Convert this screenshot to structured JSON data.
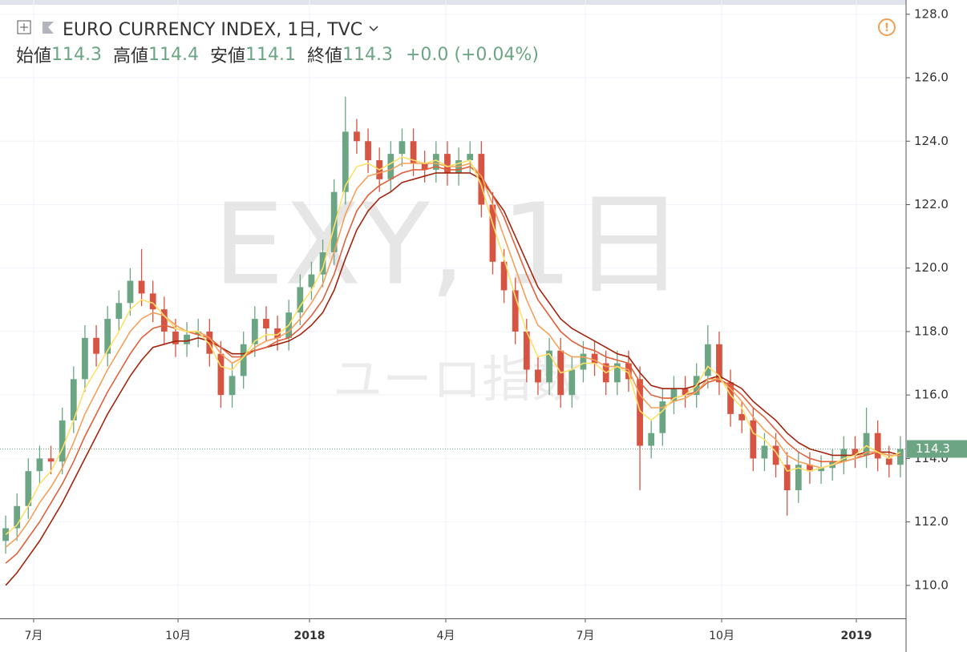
{
  "chart_data": {
    "type": "candlestick",
    "header": {
      "symbol": "EURO CURRENCY INDEX, 1日, TVC",
      "ohlc": [
        {
          "label": "始値",
          "value": 114.3
        },
        {
          "label": "高値",
          "value": 114.4
        },
        {
          "label": "安値",
          "value": 114.1
        },
        {
          "label": "終値",
          "value": 114.3
        }
      ],
      "change": "+0.0 (+0.04%)"
    },
    "watermark": "EXY, 1日",
    "watermark_subtitle": "ユーロ指数",
    "up_color": "#6ba583",
    "down_color": "#d75442",
    "open": [
      111.4,
      111.8,
      112.5,
      113.6,
      114.0,
      113.9,
      115.2,
      116.5,
      117.8,
      117.3,
      118.4,
      118.9,
      119.6,
      119.2,
      118.7,
      118.0,
      117.6,
      117.9,
      118.0,
      117.3,
      116.0,
      116.6,
      117.6,
      118.4,
      118.1,
      117.8,
      118.6,
      119.4,
      119.8,
      120.5,
      122.4,
      124.3,
      124.0,
      123.4,
      122.8,
      123.6,
      124.0,
      123.3,
      123.1,
      123.6,
      123.0,
      123.4,
      123.6,
      122.0,
      120.2,
      119.3,
      118.0,
      116.8,
      116.4,
      117.4,
      116.0,
      116.8,
      117.3,
      117.0,
      116.4,
      117.0,
      116.5,
      114.4,
      114.8,
      115.8,
      116.2,
      116.0,
      116.6,
      117.6,
      116.4,
      115.4,
      115.2,
      114.0,
      114.4,
      113.8,
      113.0,
      113.8,
      113.6,
      113.7,
      113.9,
      114.3,
      114.1,
      114.8,
      114.0,
      113.8
    ],
    "high": [
      112.2,
      112.9,
      114.0,
      114.4,
      114.4,
      115.6,
      116.9,
      118.2,
      118.2,
      118.8,
      119.3,
      120.0,
      120.6,
      119.6,
      119.1,
      118.4,
      118.3,
      118.4,
      118.4,
      117.7,
      117.0,
      118.0,
      118.8,
      118.8,
      118.5,
      119.0,
      119.8,
      120.2,
      120.9,
      122.8,
      125.4,
      124.7,
      124.4,
      123.8,
      124.0,
      124.4,
      124.4,
      123.7,
      124.0,
      124.0,
      123.8,
      124.0,
      124.0,
      122.4,
      120.6,
      119.7,
      118.4,
      117.2,
      117.8,
      117.8,
      117.2,
      117.7,
      117.7,
      117.4,
      117.4,
      117.4,
      116.9,
      115.2,
      116.2,
      116.6,
      116.6,
      117.0,
      118.2,
      118.0,
      116.8,
      115.8,
      115.6,
      114.8,
      114.8,
      114.2,
      114.2,
      114.2,
      114.1,
      114.3,
      114.7,
      114.7,
      115.6,
      115.2,
      114.4,
      114.7
    ],
    "low": [
      111.0,
      111.4,
      112.1,
      113.2,
      113.5,
      113.5,
      114.8,
      116.1,
      116.9,
      116.9,
      118.0,
      118.5,
      118.8,
      118.3,
      117.6,
      117.2,
      117.2,
      117.5,
      116.9,
      115.6,
      115.6,
      116.2,
      117.2,
      117.7,
      117.4,
      117.4,
      118.2,
      119.0,
      119.4,
      120.1,
      122.0,
      123.6,
      123.0,
      122.4,
      122.4,
      123.2,
      122.9,
      122.7,
      122.7,
      122.6,
      122.6,
      123.0,
      121.6,
      119.8,
      118.9,
      117.6,
      116.4,
      116.0,
      116.0,
      115.6,
      115.6,
      116.4,
      116.6,
      116.0,
      116.0,
      116.1,
      113.0,
      114.0,
      114.4,
      115.4,
      115.6,
      115.6,
      116.2,
      116.0,
      115.0,
      114.8,
      113.6,
      113.6,
      113.4,
      112.2,
      112.6,
      113.2,
      113.2,
      113.3,
      113.5,
      113.7,
      113.7,
      113.6,
      113.4,
      113.4
    ],
    "close": [
      111.8,
      112.5,
      113.6,
      114.0,
      113.9,
      115.2,
      116.5,
      117.8,
      117.3,
      118.4,
      118.9,
      119.6,
      119.2,
      118.7,
      118.0,
      117.6,
      117.9,
      118.0,
      117.3,
      116.0,
      116.6,
      117.6,
      118.4,
      118.1,
      117.8,
      118.6,
      119.4,
      119.8,
      120.5,
      122.4,
      124.3,
      124.0,
      123.4,
      122.8,
      123.6,
      124.0,
      123.3,
      123.1,
      123.6,
      123.0,
      123.4,
      123.6,
      122.0,
      120.2,
      119.3,
      118.0,
      116.8,
      116.4,
      117.4,
      116.0,
      116.8,
      117.3,
      117.0,
      116.4,
      117.0,
      116.5,
      114.4,
      114.8,
      115.8,
      116.2,
      116.0,
      116.6,
      117.6,
      116.4,
      115.4,
      115.2,
      114.0,
      114.4,
      113.8,
      113.0,
      113.8,
      113.6,
      113.7,
      113.9,
      114.3,
      114.1,
      114.8,
      114.0,
      113.8,
      114.3
    ],
    "series": [
      {
        "color": "#a3240c",
        "values": [
          110.0,
          110.4,
          110.9,
          111.4,
          112.0,
          112.6,
          113.3,
          114.0,
          114.7,
          115.4,
          116.0,
          116.6,
          117.1,
          117.5,
          117.6,
          117.7,
          117.7,
          117.8,
          117.7,
          117.5,
          117.3,
          117.3,
          117.4,
          117.5,
          117.6,
          117.7,
          117.9,
          118.2,
          118.6,
          119.3,
          120.3,
          121.2,
          121.8,
          122.2,
          122.4,
          122.7,
          122.8,
          122.9,
          123.0,
          123.0,
          123.0,
          123.0,
          122.8,
          122.3,
          121.8,
          121.0,
          120.2,
          119.4,
          118.9,
          118.4,
          118.1,
          117.9,
          117.7,
          117.5,
          117.3,
          117.2,
          116.7,
          116.3,
          116.2,
          116.2,
          116.2,
          116.3,
          116.5,
          116.6,
          116.4,
          116.2,
          115.8,
          115.5,
          115.2,
          114.8,
          114.5,
          114.3,
          114.2,
          114.1,
          114.1,
          114.1,
          114.2,
          114.2,
          114.2,
          114.1
        ]
      },
      {
        "color": "#e0603a",
        "values": [
          110.7,
          111.0,
          111.5,
          112.0,
          112.6,
          113.2,
          113.9,
          114.7,
          115.4,
          116.1,
          116.7,
          117.3,
          117.8,
          118.1,
          118.2,
          118.1,
          118.0,
          117.9,
          117.8,
          117.5,
          117.2,
          117.2,
          117.4,
          117.5,
          117.7,
          117.8,
          118.1,
          118.5,
          119.0,
          119.8,
          120.9,
          121.8,
          122.3,
          122.6,
          122.8,
          123.0,
          123.1,
          123.1,
          123.2,
          123.1,
          123.1,
          123.2,
          122.9,
          122.3,
          121.6,
          120.7,
          119.8,
          119.0,
          118.5,
          118.0,
          117.7,
          117.5,
          117.4,
          117.2,
          117.1,
          117.0,
          116.4,
          116.0,
          115.9,
          115.9,
          116.0,
          116.1,
          116.4,
          116.5,
          116.3,
          116.0,
          115.6,
          115.3,
          114.9,
          114.5,
          114.2,
          114.0,
          113.9,
          113.9,
          113.9,
          114.0,
          114.1,
          114.2,
          114.1,
          114.1
        ]
      },
      {
        "color": "#f5a05a",
        "values": [
          111.2,
          111.5,
          112.0,
          112.6,
          113.1,
          113.7,
          114.5,
          115.4,
          116.1,
          116.8,
          117.4,
          118.0,
          118.4,
          118.6,
          118.5,
          118.2,
          118.0,
          118.0,
          117.8,
          117.3,
          117.0,
          117.2,
          117.5,
          117.7,
          117.8,
          118.0,
          118.4,
          118.9,
          119.5,
          120.5,
          121.7,
          122.5,
          122.9,
          123.0,
          123.1,
          123.3,
          123.3,
          123.3,
          123.3,
          123.2,
          123.2,
          123.3,
          122.9,
          122.0,
          121.0,
          120.0,
          119.0,
          118.2,
          117.9,
          117.4,
          117.2,
          117.2,
          117.1,
          116.9,
          116.9,
          116.8,
          116.0,
          115.6,
          115.6,
          115.8,
          115.9,
          116.1,
          116.5,
          116.5,
          116.2,
          115.8,
          115.3,
          114.9,
          114.6,
          114.1,
          113.9,
          113.8,
          113.7,
          113.8,
          113.9,
          114.0,
          114.2,
          114.2,
          114.1,
          114.1
        ]
      },
      {
        "color": "#ffe066",
        "values": [
          111.6,
          111.9,
          112.5,
          113.2,
          113.6,
          114.3,
          115.2,
          116.2,
          116.8,
          117.4,
          118.0,
          118.7,
          119.0,
          118.9,
          118.5,
          118.1,
          118.0,
          118.0,
          117.6,
          116.9,
          116.8,
          117.2,
          117.7,
          117.9,
          117.9,
          118.2,
          118.8,
          119.3,
          120.0,
          121.3,
          122.6,
          123.2,
          123.3,
          123.1,
          123.3,
          123.5,
          123.4,
          123.3,
          123.4,
          123.2,
          123.3,
          123.4,
          122.6,
          121.4,
          120.3,
          119.1,
          118.0,
          117.2,
          117.3,
          116.7,
          116.8,
          117.0,
          117.0,
          116.7,
          116.9,
          116.7,
          115.5,
          115.2,
          115.5,
          115.9,
          116.0,
          116.3,
          116.9,
          116.6,
          116.0,
          115.6,
          114.8,
          114.6,
          114.2,
          113.6,
          113.7,
          113.6,
          113.7,
          113.8,
          114.0,
          114.1,
          114.4,
          114.2,
          114.0,
          114.2
        ]
      }
    ],
    "last_price": 114.3,
    "xlim": [
      0,
      80
    ],
    "xticks": [
      {
        "value": 2.97,
        "label": "7月"
      },
      {
        "value": 15.72,
        "label": "10月"
      },
      {
        "value": 27.33,
        "label": "2018"
      },
      {
        "value": 39.36,
        "label": "4月"
      },
      {
        "value": 51.68,
        "label": "7月"
      },
      {
        "value": 63.72,
        "label": "10月"
      },
      {
        "value": 75.61,
        "label": "2019"
      }
    ],
    "ylim": [
      108.96,
      128.45
    ],
    "yticks": [
      {
        "value": 110,
        "label": "110.0"
      },
      {
        "value": 112,
        "label": "112.0"
      },
      {
        "value": 114,
        "label": "114.0"
      },
      {
        "value": 116,
        "label": "116.0"
      },
      {
        "value": 118,
        "label": "118.0"
      },
      {
        "value": 120,
        "label": "120.0"
      },
      {
        "value": 122,
        "label": "122.0"
      },
      {
        "value": 124,
        "label": "124.0"
      },
      {
        "value": 126,
        "label": "126.0"
      },
      {
        "value": 128,
        "label": "128.0"
      }
    ],
    "grid": true
  }
}
